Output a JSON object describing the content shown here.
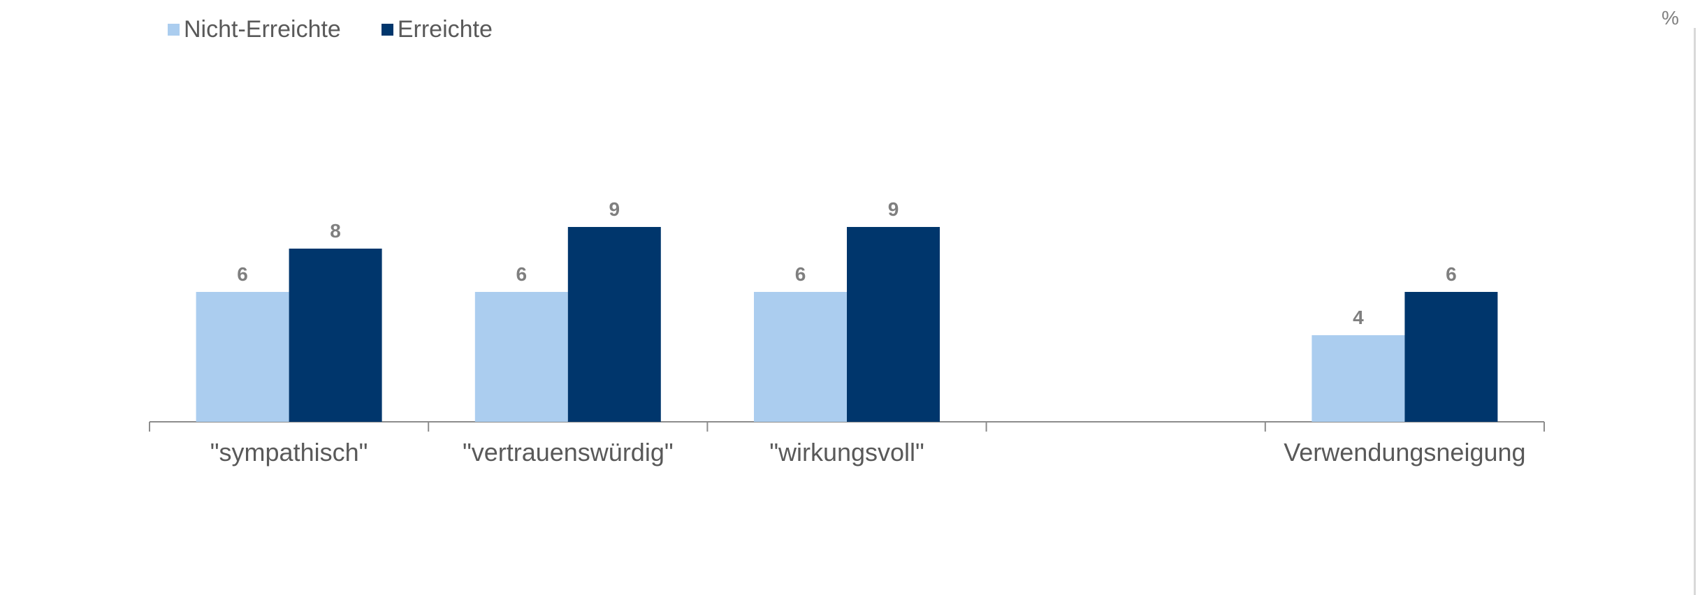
{
  "chart_data": {
    "type": "bar",
    "unit": "%",
    "categories": [
      "\"sympathisch\"",
      "\"vertrauenswürdig\"",
      "\"wirkungsvoll\"",
      "",
      "Verwendungsneigung"
    ],
    "series": [
      {
        "name": "Nicht-Erreichte",
        "color": "#abcdef",
        "values": [
          6,
          6,
          6,
          null,
          4
        ]
      },
      {
        "name": "Erreichte",
        "color": "#00366c",
        "values": [
          8,
          9,
          9,
          null,
          6
        ]
      }
    ],
    "legend_position": "top-left",
    "grid": false
  },
  "style": {
    "label_color": "#7f7f7f",
    "tick_label_color": "#595959",
    "axis_color": "#8c8c8c"
  }
}
